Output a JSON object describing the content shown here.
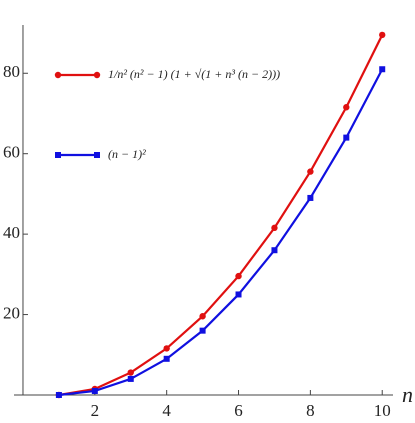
{
  "chart_data": {
    "type": "line",
    "x": [
      1,
      2,
      3,
      4,
      5,
      6,
      7,
      8,
      9,
      10
    ],
    "series": [
      {
        "name": "1/n² (n² − 1) (1 + √(1 + n³ (n − 2)))",
        "color": "#e01010",
        "marker": "circle",
        "values": [
          0,
          1.5,
          5.59,
          11.59,
          19.58,
          29.57,
          41.56,
          55.55,
          71.55,
          89.54
        ]
      },
      {
        "name": "(n − 1)²",
        "color": "#1010e0",
        "marker": "square",
        "values": [
          0,
          1,
          4,
          9,
          16,
          25,
          36,
          49,
          64,
          81
        ]
      }
    ],
    "x_label": "n",
    "xlim": [
      -0.25,
      10.3
    ],
    "xticks": [
      2,
      4,
      6,
      8,
      10
    ],
    "ylim": [
      0,
      92
    ],
    "yticks": [
      20,
      40,
      60,
      80
    ]
  }
}
